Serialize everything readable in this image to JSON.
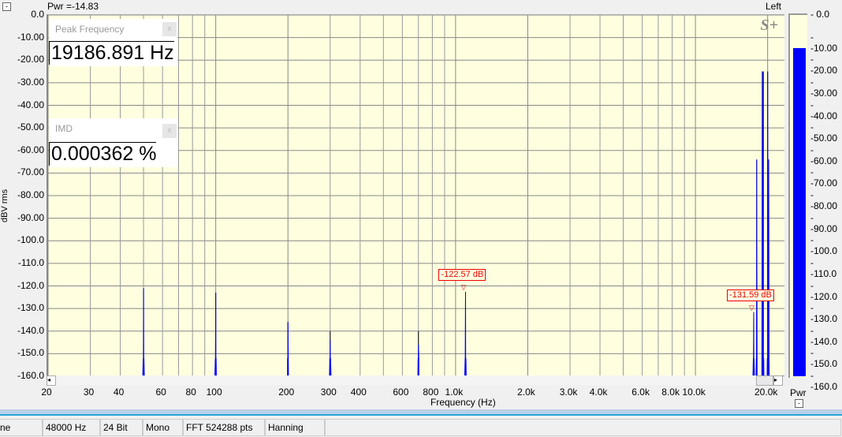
{
  "header": {
    "pwr_readout": "Pwr =-14.83",
    "channel": "Left",
    "logo": "S+"
  },
  "peak_window": {
    "title": "Peak Frequency",
    "value": "19186.891 Hz",
    "close": "x"
  },
  "imd_window": {
    "title": "IMD",
    "value": "0.000362 %",
    "close": "x"
  },
  "markers": [
    {
      "label": "-122.57 dB",
      "freq": 1100,
      "db": -122.57
    },
    {
      "label": "-131.59 dB",
      "freq": 17500,
      "db": -131.59
    }
  ],
  "chart_data": {
    "type": "line",
    "xlabel": "Frequency (Hz)",
    "ylabel": "dBV rms",
    "xscale": "log",
    "xlim": [
      20,
      23500
    ],
    "ylim": [
      -160,
      0
    ],
    "grid": true,
    "yticks": [
      "0.0",
      "-10.00",
      "-20.00",
      "-30.00",
      "-40.00",
      "-50.00",
      "-60.00",
      "-70.00",
      "-80.00",
      "-90.00",
      "-100.0",
      "-110.0",
      "-120.0",
      "-130.0",
      "-140.0",
      "-150.0",
      "-160.0"
    ],
    "xticks": [
      {
        "v": 20,
        "l": "20"
      },
      {
        "v": 30,
        "l": "30"
      },
      {
        "v": 40,
        "l": "40"
      },
      {
        "v": 60,
        "l": "60"
      },
      {
        "v": 80,
        "l": "80"
      },
      {
        "v": 100,
        "l": "100"
      },
      {
        "v": 200,
        "l": "200"
      },
      {
        "v": 300,
        "l": "300"
      },
      {
        "v": 400,
        "l": "400"
      },
      {
        "v": 600,
        "l": "600"
      },
      {
        "v": 800,
        "l": "800"
      },
      {
        "v": 1000,
        "l": "1.0k"
      },
      {
        "v": 2000,
        "l": "2.0k"
      },
      {
        "v": 3000,
        "l": "3.0k"
      },
      {
        "v": 4000,
        "l": "4.0k"
      },
      {
        "v": 6000,
        "l": "6.0k"
      },
      {
        "v": 8000,
        "l": "8.0k"
      },
      {
        "v": 10000,
        "l": "10.0k"
      },
      {
        "v": 20000,
        "l": "20.0k"
      }
    ],
    "noise_floor_db": -152,
    "peaks": [
      {
        "f": 50,
        "db": -121
      },
      {
        "f": 100,
        "db": -123
      },
      {
        "f": 200,
        "db": -136
      },
      {
        "f": 300,
        "db": -144
      },
      {
        "f": 700,
        "db": -146
      },
      {
        "f": 1100,
        "db": -122.57
      },
      {
        "f": 17500,
        "db": -131.59
      },
      {
        "f": 18000,
        "db": -64
      },
      {
        "f": 19000,
        "db": -25
      },
      {
        "f": 19186.891,
        "db": -25
      },
      {
        "f": 20000,
        "db": -25
      },
      {
        "f": 20200,
        "db": -64
      }
    ],
    "series": [
      {
        "color": "#0000ff"
      }
    ]
  },
  "level_meter": {
    "label": "Pwr",
    "value_db": -14.83,
    "min_db": -160,
    "max_db": 0,
    "color": "#0000ff",
    "ticks": [
      "0.0",
      "-10.00",
      "-20.00",
      "-30.00",
      "-40.00",
      "-50.00",
      "-60.00",
      "-70.00",
      "-80.00",
      "-90.00",
      "-100.0",
      "-110.0",
      "-120.0",
      "-130.0",
      "-140.0",
      "-150.0",
      "-160.0"
    ]
  },
  "status_bar": [
    "ne",
    "48000 Hz",
    "24 Bit",
    "Mono",
    "FFT 524288 pts",
    "Hanning"
  ]
}
